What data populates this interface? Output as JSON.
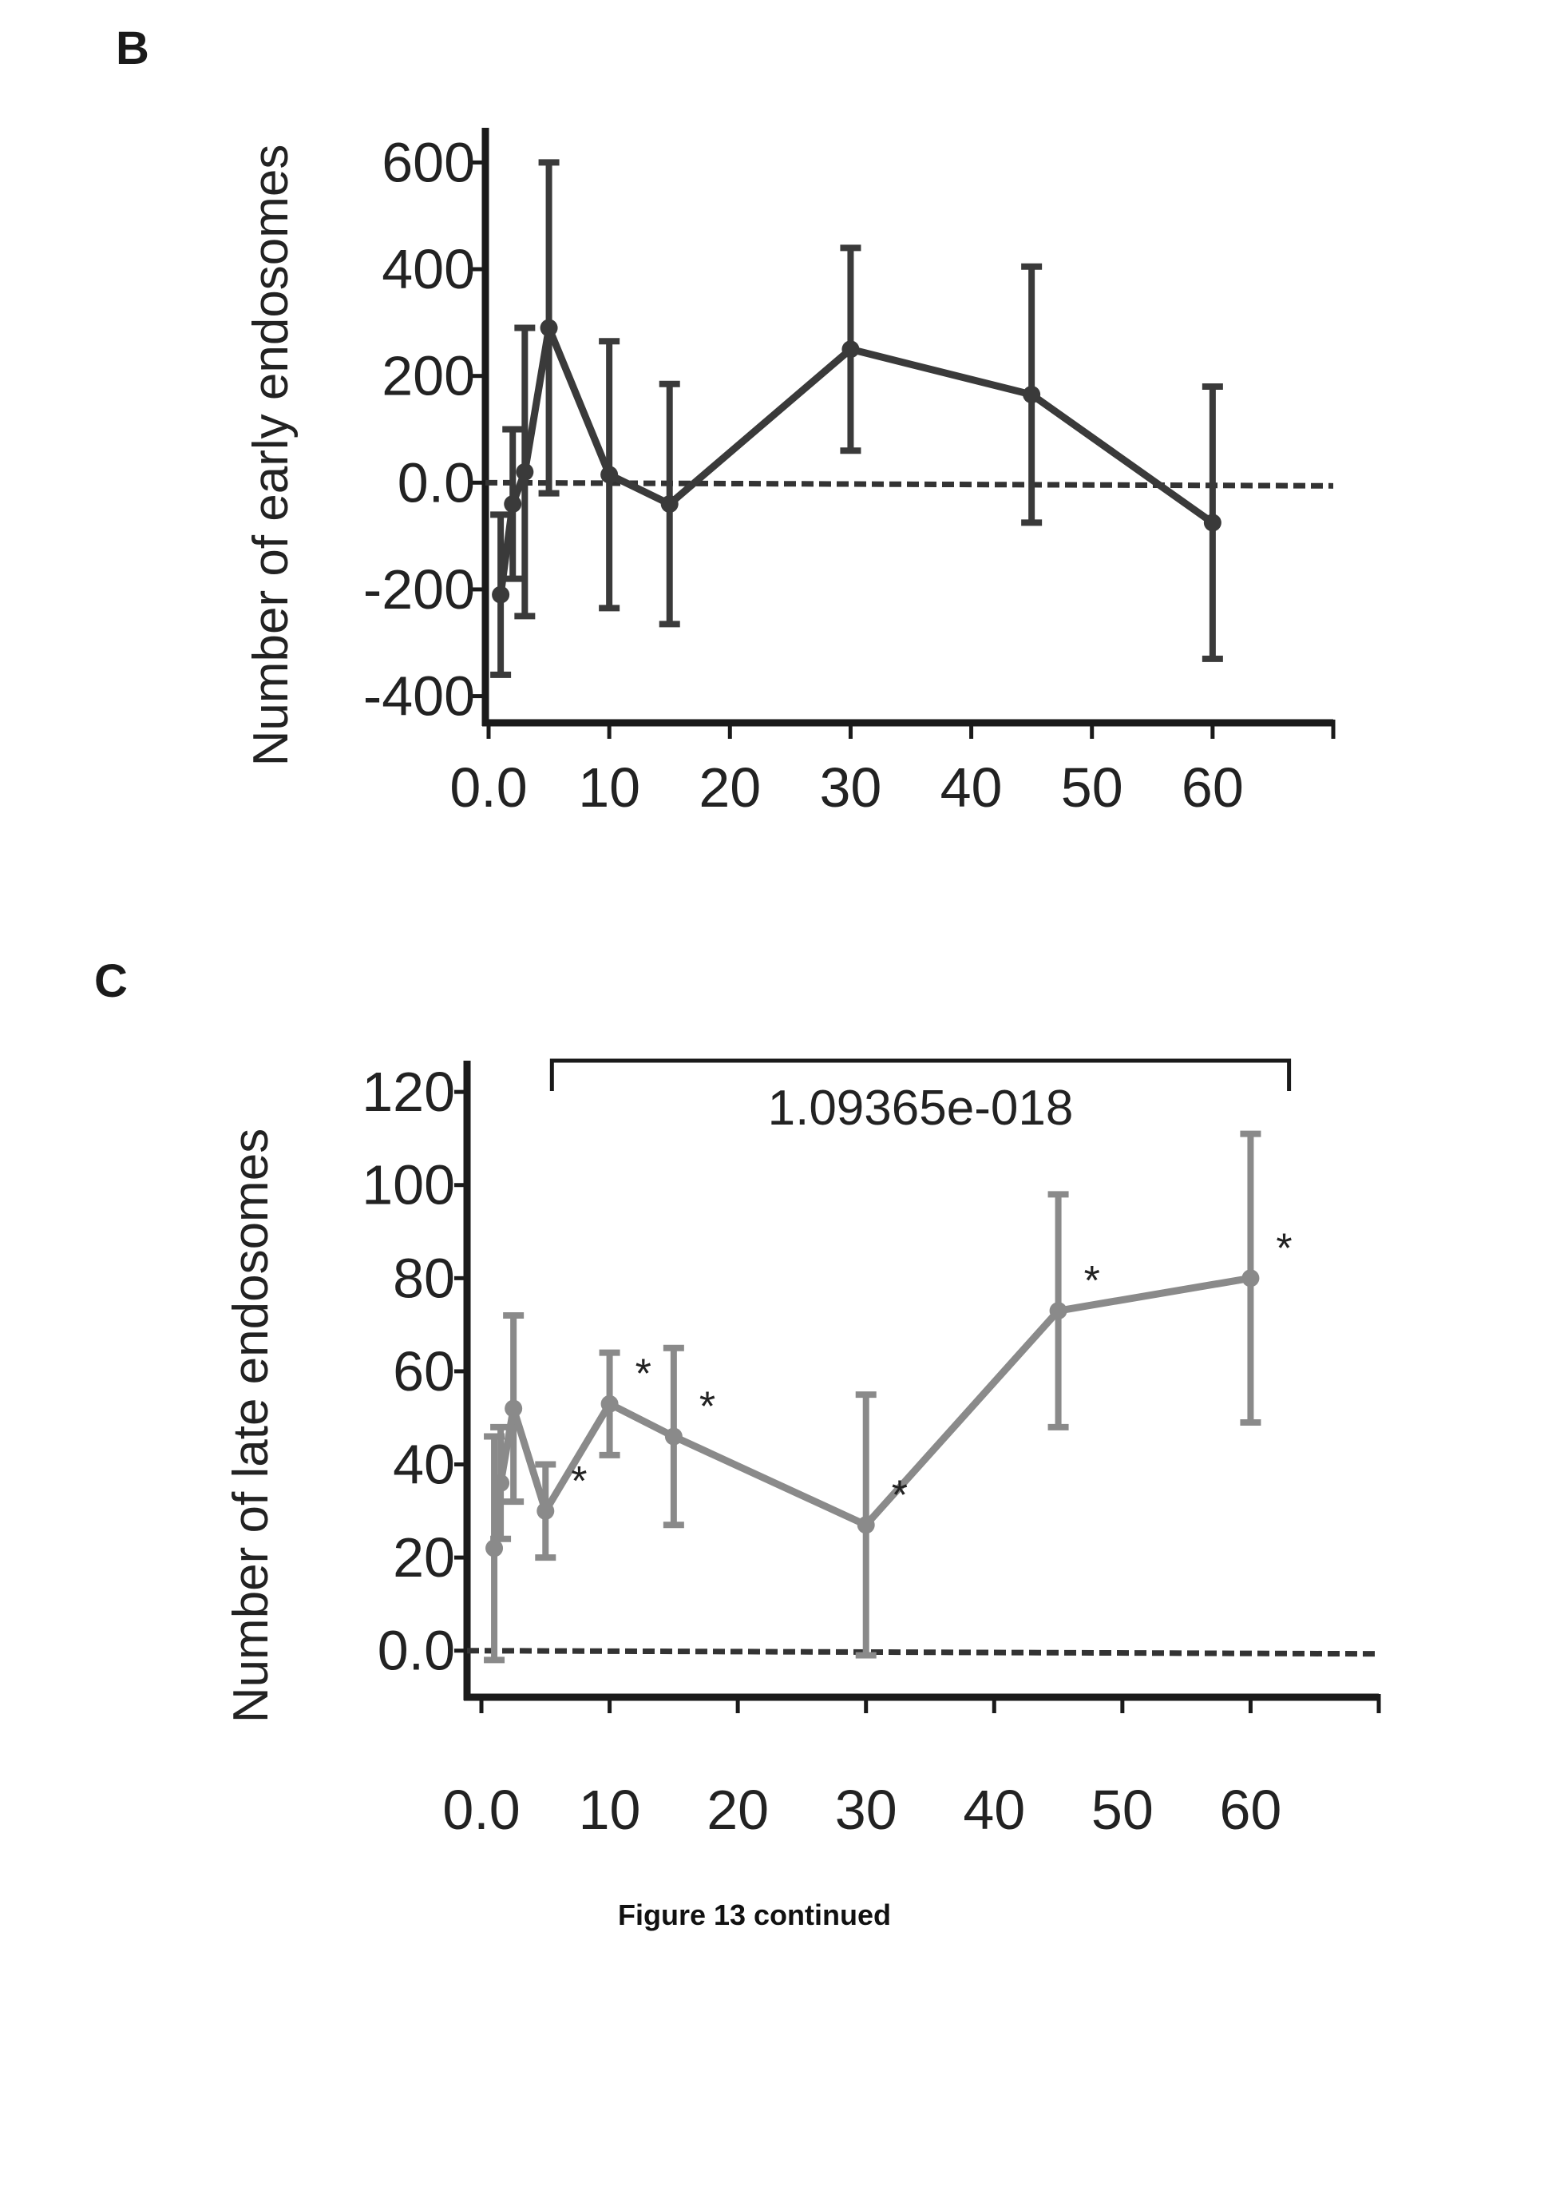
{
  "figure": {
    "caption": "Figure 13 continued"
  },
  "chart_data": [
    {
      "panel": "B",
      "type": "line",
      "title": "",
      "xlabel": "",
      "ylabel": "Number of early endosomes",
      "xlim": [
        0,
        70
      ],
      "ylim": [
        -450,
        650
      ],
      "x_ticks": [
        0,
        10,
        20,
        30,
        40,
        50,
        60
      ],
      "x_tick_labels": [
        "0.0",
        "10",
        "20",
        "30",
        "40",
        "50",
        "60"
      ],
      "y_ticks": [
        -400,
        -200,
        0,
        200,
        400,
        600
      ],
      "y_tick_labels": [
        "-400",
        "-200",
        "0.0",
        "200",
        "400",
        "600"
      ],
      "reference_line": 0,
      "color": "#3a3a3a",
      "series": [
        {
          "x": [
            1,
            2,
            3,
            5,
            10,
            15,
            30,
            45,
            60
          ],
          "y": [
            -210,
            -40,
            20,
            290,
            15,
            -40,
            250,
            165,
            -75
          ],
          "error": [
            150,
            140,
            270,
            310,
            250,
            225,
            190,
            240,
            255
          ]
        }
      ],
      "annotations": []
    },
    {
      "panel": "C",
      "type": "line",
      "title": "",
      "xlabel": "",
      "ylabel": "Number of late endosomes",
      "xlim": [
        0,
        70
      ],
      "ylim": [
        -10,
        125
      ],
      "x_ticks": [
        0,
        10,
        20,
        30,
        40,
        50,
        60
      ],
      "x_tick_labels": [
        "0.0",
        "10",
        "20",
        "30",
        "40",
        "50",
        "60"
      ],
      "y_ticks": [
        0,
        20,
        40,
        60,
        80,
        100,
        120
      ],
      "y_tick_labels": [
        "0.0",
        "20",
        "40",
        "60",
        "80",
        "100",
        "120"
      ],
      "reference_line": 0,
      "color": "#8a8a8a",
      "series": [
        {
          "x": [
            1,
            1.5,
            2.5,
            5,
            10,
            15,
            30,
            45,
            60
          ],
          "y": [
            22,
            36,
            52,
            30,
            53,
            46,
            27,
            73,
            80
          ],
          "error": [
            24,
            12,
            20,
            10,
            11,
            19,
            28,
            25,
            31
          ]
        }
      ],
      "significance_markers": [
        {
          "x": 5,
          "y": 30,
          "label": "*"
        },
        {
          "x": 10,
          "y": 53,
          "label": "*"
        },
        {
          "x": 15,
          "y": 46,
          "label": "*"
        },
        {
          "x": 30,
          "y": 27,
          "label": "*"
        },
        {
          "x": 45,
          "y": 73,
          "label": "*"
        },
        {
          "x": 60,
          "y": 80,
          "label": "*"
        }
      ],
      "bracket": {
        "x_from": 5.5,
        "x_to": 63,
        "y": 125,
        "label": "1.09365e-018"
      }
    }
  ]
}
